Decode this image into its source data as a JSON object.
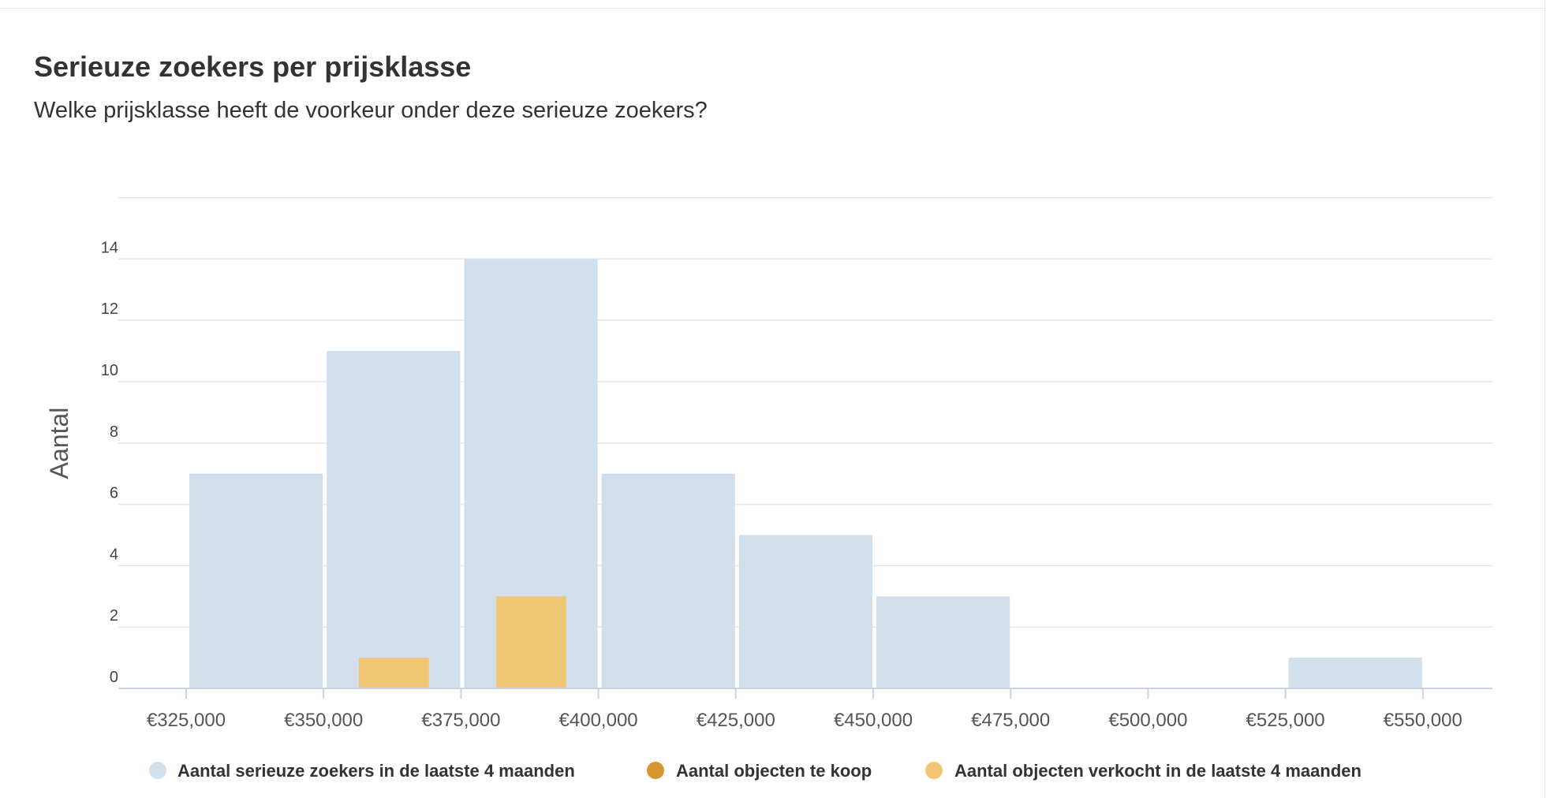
{
  "card": {
    "title": "Serieuze zoekers per prijsklasse",
    "subtitle": "Welke prijsklasse heeft de voorkeur onder deze serieuze zoekers?"
  },
  "chart_data": {
    "type": "bar",
    "title": "Serieuze zoekers per prijsklasse",
    "subtitle": "Welke prijsklasse heeft de voorkeur onder deze serieuze zoekers?",
    "ylabel": "Aantal",
    "xlabel": "",
    "x_ticks": [
      "€325,000",
      "€350,000",
      "€375,000",
      "€400,000",
      "€425,000",
      "€450,000",
      "€475,000",
      "€500,000",
      "€525,000",
      "€550,000"
    ],
    "y_ticks": [
      0,
      2,
      4,
      6,
      8,
      10,
      12,
      14
    ],
    "ylim": [
      0,
      16
    ],
    "grid": true,
    "legend_position": "bottom",
    "series": [
      {
        "name": "Aantal serieuze zoekers in de laatste 4 maanden",
        "color": "#d1dfeb",
        "bins": [
          {
            "from": 325000,
            "to": 350000,
            "value": 7
          },
          {
            "from": 350000,
            "to": 375000,
            "value": 11
          },
          {
            "from": 375000,
            "to": 400000,
            "value": 14
          },
          {
            "from": 400000,
            "to": 425000,
            "value": 7
          },
          {
            "from": 425000,
            "to": 450000,
            "value": 5
          },
          {
            "from": 450000,
            "to": 475000,
            "value": 3
          },
          {
            "from": 475000,
            "to": 500000,
            "value": 0
          },
          {
            "from": 500000,
            "to": 525000,
            "value": 0
          },
          {
            "from": 525000,
            "to": 550000,
            "value": 1
          }
        ]
      },
      {
        "name": "Aantal objecten te koop",
        "color": "#d4972e",
        "bins": []
      },
      {
        "name": "Aantal objecten verkocht in de laatste 4 maanden",
        "color": "#f0c674",
        "bins": [
          {
            "from": 350000,
            "to": 375000,
            "value": 1
          },
          {
            "from": 375000,
            "to": 400000,
            "value": 3
          }
        ]
      }
    ]
  }
}
